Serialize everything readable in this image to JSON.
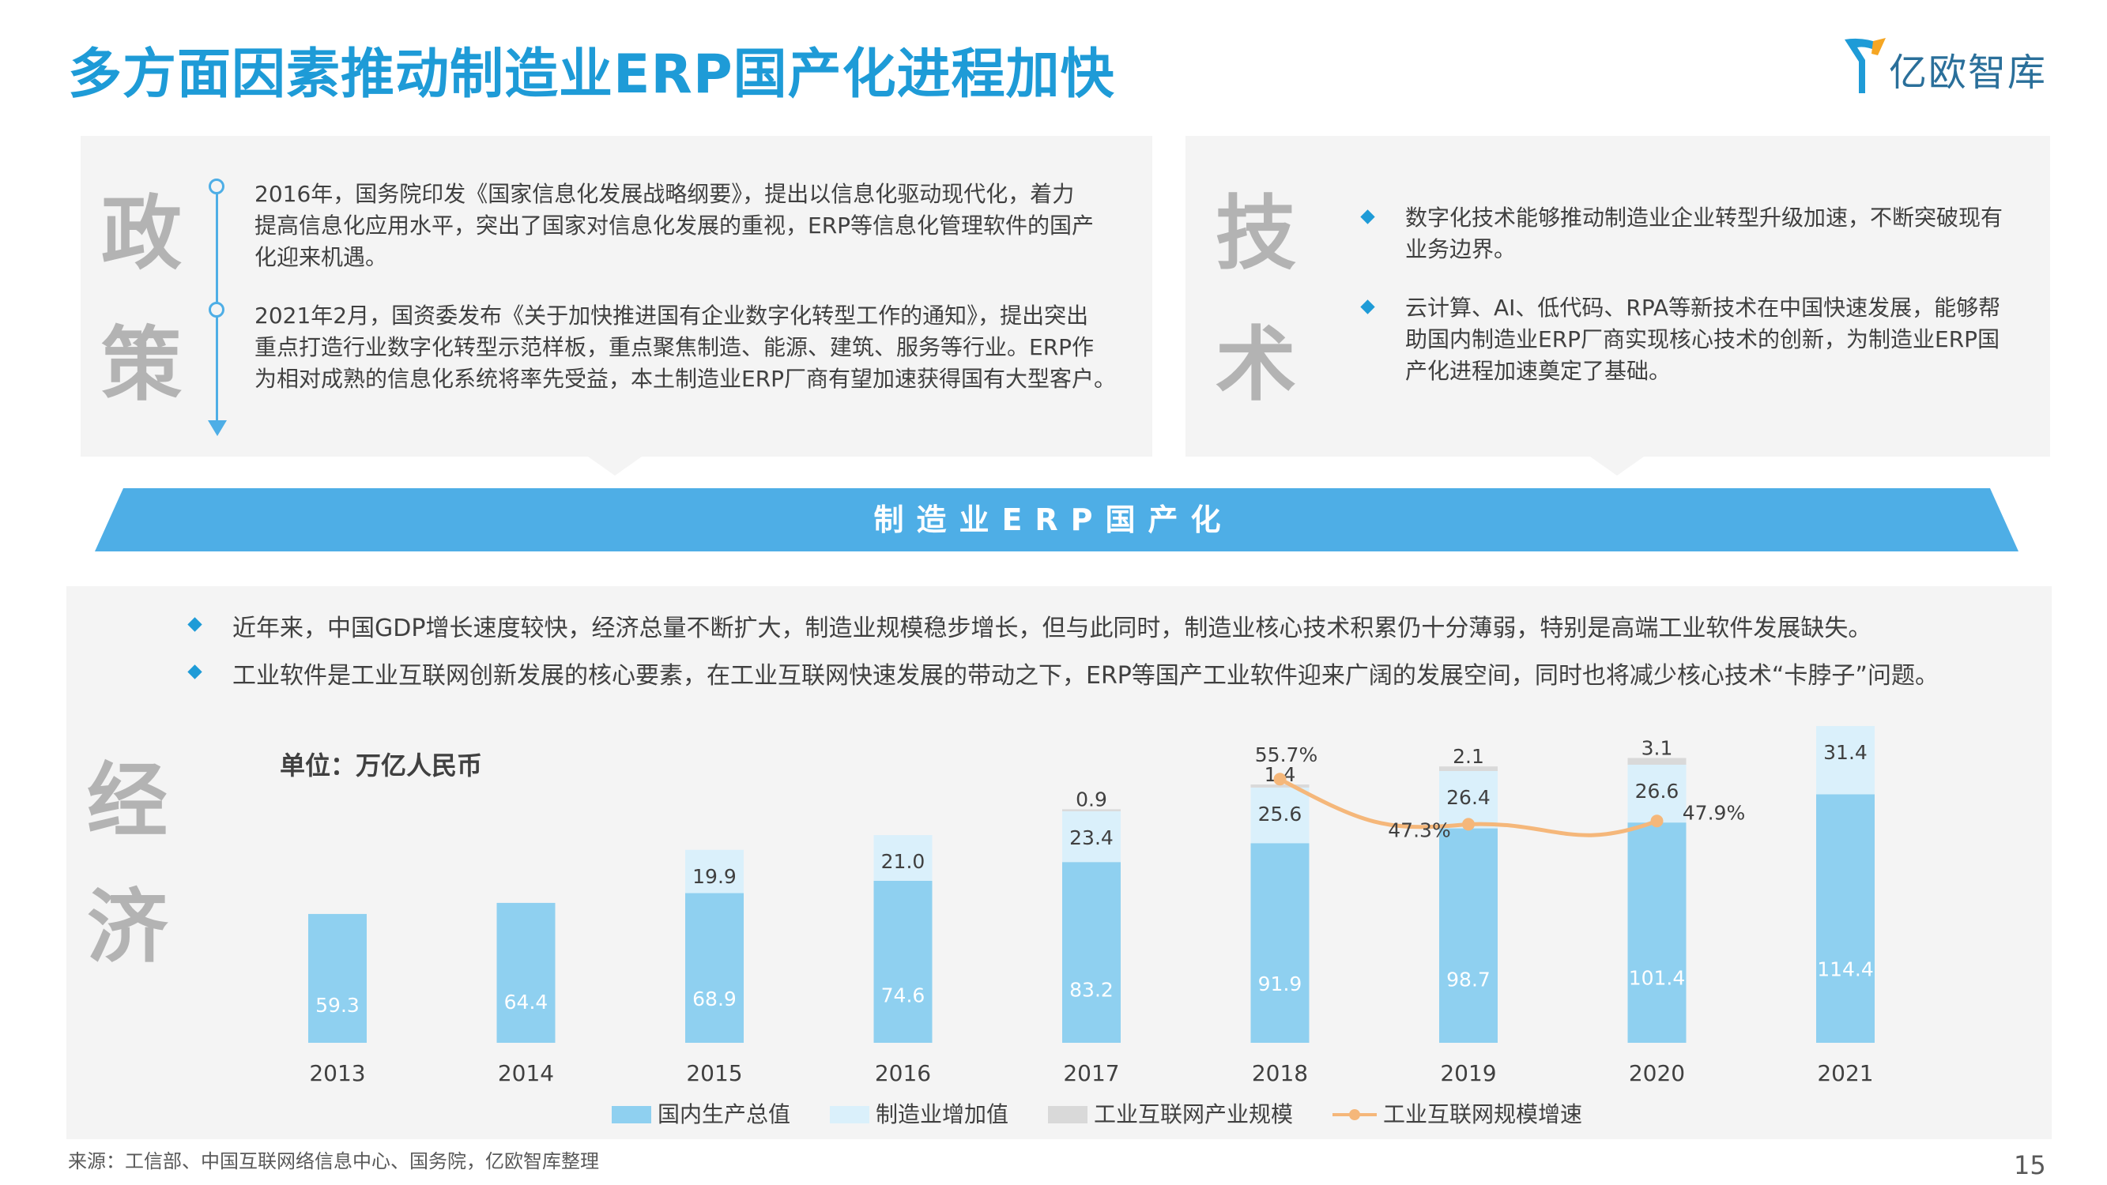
{
  "page": {
    "title": "多方面因素推动制造业ERP国产化进程加快",
    "logo_text": "亿欧智库",
    "page_number": "15",
    "source": "来源：工信部、中国互联网络信息中心、国务院，亿欧智库整理"
  },
  "policy": {
    "char1": "政",
    "char2": "策",
    "items": [
      {
        "lines": [
          "2016年，国务院印发《国家信息化发展战略纲要》，提出以信息化驱动现代化，着力",
          "提高信息化应用水平，突出了国家对信息化发展的重视，ERP等信息化管理软件的国产",
          "化迎来机遇。"
        ]
      },
      {
        "lines": [
          "2021年2月，国资委发布《关于加快推进国有企业数字化转型工作的通知》，提出突出",
          "重点打造行业数字化转型示范样板，重点聚焦制造、能源、建筑、服务等行业。ERP作",
          "为相对成熟的信息化系统将率先受益，本土制造业ERP厂商有望加速获得国有大型客户。"
        ]
      }
    ]
  },
  "technology": {
    "char1": "技",
    "char2": "术",
    "items": [
      {
        "lines": [
          "数字化技术能够推动制造业企业转型升级加速，不断突破现有",
          "业务边界。"
        ]
      },
      {
        "lines": [
          "云计算、AI、低代码、RPA等新技术在中国快速发展，能够帮",
          "助国内制造业ERP厂商实现核心技术的创新，为制造业ERP国",
          "产化进程加速奠定了基础。"
        ]
      }
    ]
  },
  "banner": {
    "text": "制造业ERP国产化"
  },
  "economy": {
    "char1": "经",
    "char2": "济",
    "bullets": [
      "近年来，中国GDP增长速度较快，经济总量不断扩大，制造业规模稳步增长，但与此同时，制造业核心技术积累仍十分薄弱，特别是高端工业软件发展缺失。",
      "工业软件是工业互联网创新发展的核心要素，在工业互联网快速发展的带动之下，ERP等国产工业软件迎来广阔的发展空间，同时也将减少核心技术“卡脖子”问题。"
    ],
    "unit_label": "单位：万亿人民币"
  },
  "chart_data": {
    "type": "bar",
    "stacked": true,
    "categories": [
      "2013",
      "2014",
      "2015",
      "2016",
      "2017",
      "2018",
      "2019",
      "2020",
      "2021"
    ],
    "series": [
      {
        "name": "国内生产总值",
        "color": "#8fd0f0",
        "values": [
          59.3,
          64.4,
          68.9,
          74.6,
          83.2,
          91.9,
          98.7,
          101.4,
          114.4
        ]
      },
      {
        "name": "制造业增加值",
        "color": "#daf0fb",
        "values": [
          null,
          null,
          19.9,
          21.0,
          23.4,
          25.6,
          26.4,
          26.6,
          31.4
        ]
      },
      {
        "name": "工业互联网产业规模",
        "color": "#d9d9d9",
        "values": [
          null,
          null,
          null,
          null,
          0.9,
          1.4,
          2.1,
          3.1,
          null
        ]
      }
    ],
    "line_series": {
      "name": "工业互联网规模增速",
      "color": "#f5b77a",
      "values": [
        null,
        null,
        null,
        null,
        null,
        55.7,
        47.3,
        47.9,
        null
      ],
      "labels": [
        null,
        null,
        null,
        null,
        null,
        "55.7%",
        "47.3%",
        "47.9%",
        null
      ]
    },
    "legend_position": "bottom"
  }
}
